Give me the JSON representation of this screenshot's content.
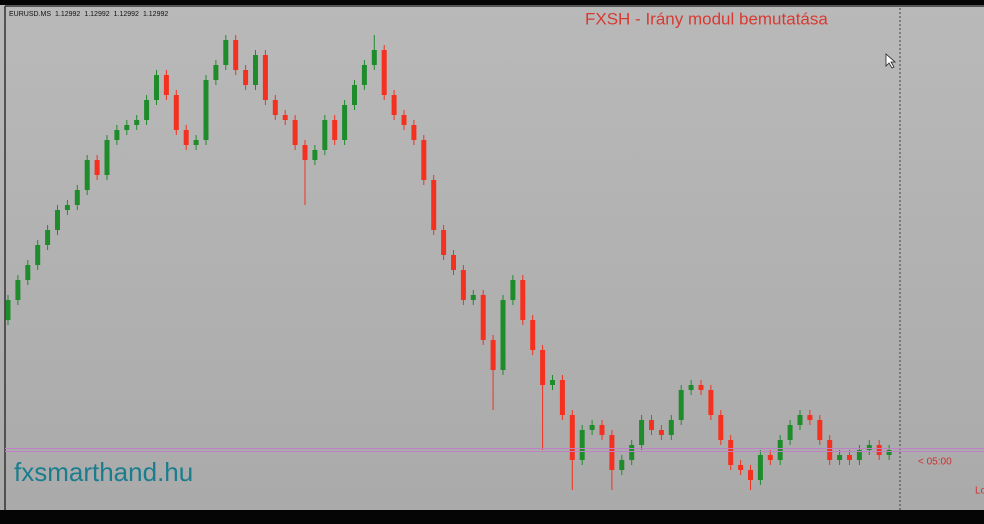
{
  "chart_data": {
    "type": "candlestick",
    "symbol": "EURUSD.MS",
    "ohlc": [
      1.12992,
      1.12992,
      1.12992,
      1.12992
    ],
    "title": "FXSH - Irány modul bemutatása",
    "watermark": "fxsmarthand.hu",
    "countdown": "< 05:00",
    "corner_label": "Lo",
    "up_color": "#1f8c2c",
    "down_color": "#f5301e",
    "ylim": [
      1.12932,
      1.13442
    ],
    "open": [
      1.13122,
      1.13142,
      1.13162,
      1.13177,
      1.13197,
      1.13212,
      1.13232,
      1.13237,
      1.13252,
      1.13282,
      1.13267,
      1.13302,
      1.13312,
      1.13317,
      1.13322,
      1.13342,
      1.13367,
      1.13347,
      1.13312,
      1.13297,
      1.13302,
      1.13362,
      1.13377,
      1.13402,
      1.13372,
      1.13357,
      1.13387,
      1.13342,
      1.13327,
      1.13322,
      1.13297,
      1.13282,
      1.13292,
      1.13322,
      1.13302,
      1.13337,
      1.13357,
      1.13377,
      1.13392,
      1.13347,
      1.13327,
      1.13317,
      1.13302,
      1.13262,
      1.13212,
      1.13187,
      1.13172,
      1.13142,
      1.13147,
      1.13102,
      1.13072,
      1.13142,
      1.13162,
      1.13122,
      1.13092,
      1.13057,
      1.13062,
      1.13027,
      1.12982,
      1.13012,
      1.13017,
      1.13007,
      1.12972,
      1.12982,
      1.12997,
      1.13022,
      1.13012,
      1.13007,
      1.13022,
      1.13052,
      1.13057,
      1.13052,
      1.13027,
      1.13002,
      1.12977,
      1.12972,
      1.12962,
      1.12987,
      1.12982,
      1.13002,
      1.13017,
      1.13027,
      1.13022,
      1.13002,
      1.12982,
      1.12987,
      1.12982,
      1.12992,
      1.12997,
      1.12987
    ],
    "high": [
      1.13147,
      1.13167,
      1.13182,
      1.13202,
      1.13217,
      1.13237,
      1.13242,
      1.13257,
      1.13287,
      1.13287,
      1.13307,
      1.13317,
      1.13322,
      1.13327,
      1.13347,
      1.13372,
      1.13372,
      1.13352,
      1.13317,
      1.13307,
      1.13367,
      1.13382,
      1.13407,
      1.13407,
      1.13377,
      1.13392,
      1.13392,
      1.13347,
      1.13332,
      1.13327,
      1.13302,
      1.13297,
      1.13327,
      1.13327,
      1.13342,
      1.13362,
      1.13382,
      1.13407,
      1.13397,
      1.13352,
      1.13332,
      1.13322,
      1.13307,
      1.13267,
      1.13217,
      1.13192,
      1.13177,
      1.13152,
      1.13152,
      1.13107,
      1.13147,
      1.13167,
      1.13167,
      1.13127,
      1.13097,
      1.13067,
      1.13067,
      1.13032,
      1.13017,
      1.13022,
      1.13022,
      1.13012,
      1.12987,
      1.13002,
      1.13027,
      1.13027,
      1.13017,
      1.13027,
      1.13057,
      1.13062,
      1.13062,
      1.13057,
      1.13032,
      1.13007,
      1.12982,
      1.12977,
      1.12992,
      1.12992,
      1.13007,
      1.13022,
      1.13032,
      1.13032,
      1.13027,
      1.13007,
      1.12992,
      1.12992,
      1.12997,
      1.13002,
      1.13002,
      1.12997
    ],
    "low": [
      1.13117,
      1.13137,
      1.13157,
      1.13172,
      1.13192,
      1.13207,
      1.13227,
      1.13232,
      1.13247,
      1.13262,
      1.13262,
      1.13297,
      1.13307,
      1.13312,
      1.13317,
      1.13337,
      1.13342,
      1.13307,
      1.13292,
      1.13292,
      1.13297,
      1.13357,
      1.13372,
      1.13367,
      1.13352,
      1.13352,
      1.13337,
      1.13322,
      1.13317,
      1.13292,
      1.13237,
      1.13277,
      1.13287,
      1.13297,
      1.13297,
      1.13332,
      1.13352,
      1.13372,
      1.13342,
      1.13322,
      1.13312,
      1.13297,
      1.13257,
      1.13207,
      1.13182,
      1.13167,
      1.13137,
      1.13137,
      1.13097,
      1.13032,
      1.13067,
      1.13137,
      1.13117,
      1.13087,
      1.12992,
      1.13052,
      1.13022,
      1.12952,
      1.12977,
      1.13007,
      1.13002,
      1.12952,
      1.12967,
      1.12977,
      1.12992,
      1.13007,
      1.13002,
      1.13002,
      1.13017,
      1.13047,
      1.13047,
      1.13022,
      1.12997,
      1.12972,
      1.12967,
      1.12952,
      1.12957,
      1.12977,
      1.12977,
      1.12997,
      1.13012,
      1.13017,
      1.12997,
      1.12977,
      1.12977,
      1.12977,
      1.12977,
      1.12987,
      1.12982,
      1.12982
    ],
    "close": [
      1.13142,
      1.13162,
      1.13177,
      1.13197,
      1.13212,
      1.13232,
      1.13237,
      1.13252,
      1.13282,
      1.13267,
      1.13302,
      1.13312,
      1.13317,
      1.13322,
      1.13342,
      1.13367,
      1.13347,
      1.13312,
      1.13297,
      1.13302,
      1.13362,
      1.13377,
      1.13402,
      1.13372,
      1.13357,
      1.13387,
      1.13342,
      1.13327,
      1.13322,
      1.13297,
      1.13282,
      1.13292,
      1.13322,
      1.13302,
      1.13337,
      1.13357,
      1.13377,
      1.13392,
      1.13347,
      1.13327,
      1.13317,
      1.13302,
      1.13262,
      1.13212,
      1.13187,
      1.13172,
      1.13142,
      1.13147,
      1.13102,
      1.13072,
      1.13142,
      1.13162,
      1.13122,
      1.13092,
      1.13057,
      1.13062,
      1.13027,
      1.12982,
      1.13012,
      1.13017,
      1.13007,
      1.12972,
      1.12982,
      1.12997,
      1.13022,
      1.13012,
      1.13007,
      1.13022,
      1.13052,
      1.13057,
      1.13052,
      1.13027,
      1.13002,
      1.12977,
      1.12972,
      1.12962,
      1.12987,
      1.12982,
      1.13002,
      1.13017,
      1.13027,
      1.13022,
      1.13002,
      1.12982,
      1.12987,
      1.12982,
      1.12992,
      1.12997,
      1.12987,
      1.12992
    ]
  }
}
